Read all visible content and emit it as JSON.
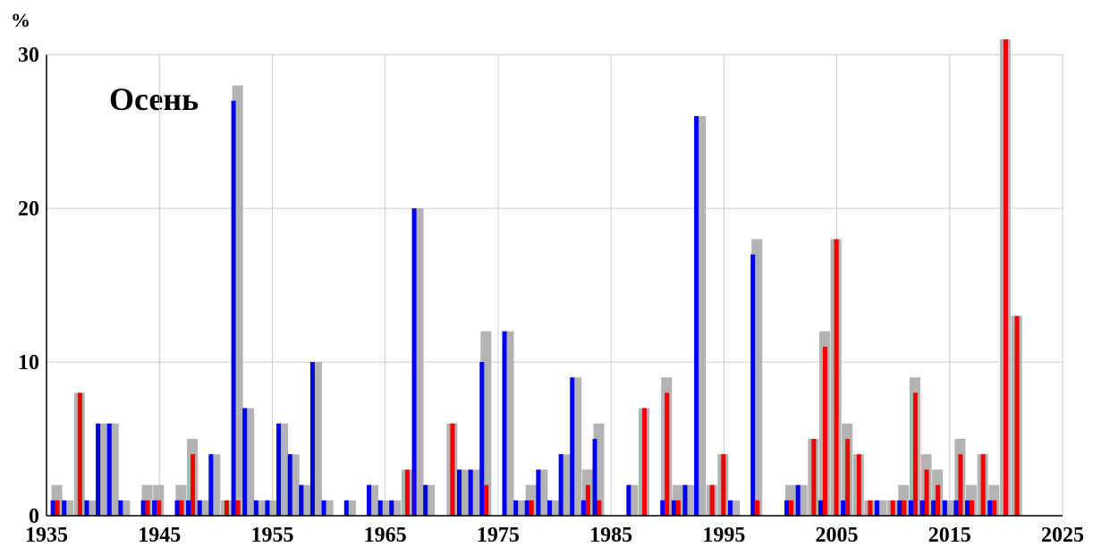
{
  "chart_data": {
    "type": "bar",
    "y_label": "%",
    "annotation": "Осень",
    "x": [
      1936,
      1937,
      1938,
      1939,
      1940,
      1941,
      1942,
      1943,
      1944,
      1945,
      1946,
      1947,
      1948,
      1949,
      1950,
      1951,
      1952,
      1953,
      1954,
      1955,
      1956,
      1957,
      1958,
      1959,
      1960,
      1961,
      1962,
      1963,
      1964,
      1965,
      1966,
      1967,
      1968,
      1969,
      1970,
      1971,
      1972,
      1973,
      1974,
      1975,
      1976,
      1977,
      1978,
      1979,
      1980,
      1981,
      1982,
      1983,
      1984,
      1985,
      1986,
      1987,
      1988,
      1989,
      1990,
      1991,
      1992,
      1993,
      1994,
      1995,
      1996,
      1997,
      1998,
      1999,
      2000,
      2001,
      2002,
      2003,
      2004,
      2005,
      2006,
      2007,
      2008,
      2009,
      2010,
      2011,
      2012,
      2013,
      2014,
      2015,
      2016,
      2017,
      2018,
      2019,
      2020,
      2021
    ],
    "series": [
      {
        "color": "#b3b3b3",
        "values": [
          2,
          1,
          8,
          1,
          6,
          6,
          1,
          0,
          2,
          2,
          0,
          2,
          5,
          1,
          4,
          1,
          28,
          7,
          1,
          1,
          6,
          4,
          2,
          10,
          1,
          0,
          1,
          0,
          2,
          1,
          1,
          3,
          20,
          2,
          0,
          6,
          3,
          3,
          12,
          0,
          12,
          1,
          2,
          3,
          1,
          4,
          9,
          3,
          6,
          0,
          0,
          2,
          7,
          0,
          9,
          2,
          2,
          26,
          2,
          4,
          1,
          0,
          18,
          0,
          0,
          2,
          2,
          5,
          12,
          18,
          6,
          4,
          1,
          1,
          1,
          2,
          9,
          4,
          3,
          1,
          5,
          2,
          4,
          2,
          31,
          13
        ]
      },
      {
        "color": "#0000ee",
        "values": [
          1,
          1,
          0,
          1,
          6,
          6,
          1,
          0,
          1,
          1,
          0,
          1,
          1,
          1,
          4,
          0,
          27,
          7,
          1,
          1,
          6,
          4,
          2,
          10,
          1,
          0,
          1,
          0,
          2,
          1,
          1,
          0,
          20,
          2,
          0,
          0,
          3,
          3,
          10,
          0,
          12,
          1,
          1,
          3,
          1,
          4,
          9,
          1,
          5,
          0,
          0,
          2,
          0,
          0,
          1,
          1,
          2,
          26,
          0,
          0,
          1,
          0,
          17,
          0,
          0,
          1,
          2,
          0,
          1,
          0,
          1,
          0,
          0,
          1,
          0,
          1,
          1,
          1,
          1,
          1,
          1,
          1,
          0,
          1,
          0,
          0
        ]
      },
      {
        "color": "#ee0000",
        "values": [
          1,
          0,
          8,
          0,
          0,
          0,
          0,
          0,
          1,
          1,
          0,
          1,
          4,
          0,
          0,
          1,
          1,
          0,
          0,
          0,
          0,
          0,
          0,
          0,
          0,
          0,
          0,
          0,
          0,
          0,
          0,
          3,
          0,
          0,
          0,
          6,
          0,
          0,
          2,
          0,
          0,
          0,
          1,
          0,
          0,
          0,
          0,
          2,
          1,
          0,
          0,
          0,
          7,
          0,
          8,
          1,
          0,
          0,
          2,
          4,
          0,
          0,
          1,
          0,
          0,
          1,
          0,
          5,
          11,
          18,
          5,
          4,
          1,
          0,
          1,
          1,
          8,
          3,
          2,
          0,
          4,
          1,
          4,
          1,
          31,
          13
        ]
      }
    ],
    "xlim": [
      1935,
      2025
    ],
    "xticks": [
      1935,
      1945,
      1955,
      1965,
      1975,
      1985,
      1995,
      2005,
      2015,
      2025
    ],
    "ylim": [
      0,
      31
    ],
    "yticks": [
      0,
      10,
      20,
      30
    ],
    "grid": true
  }
}
